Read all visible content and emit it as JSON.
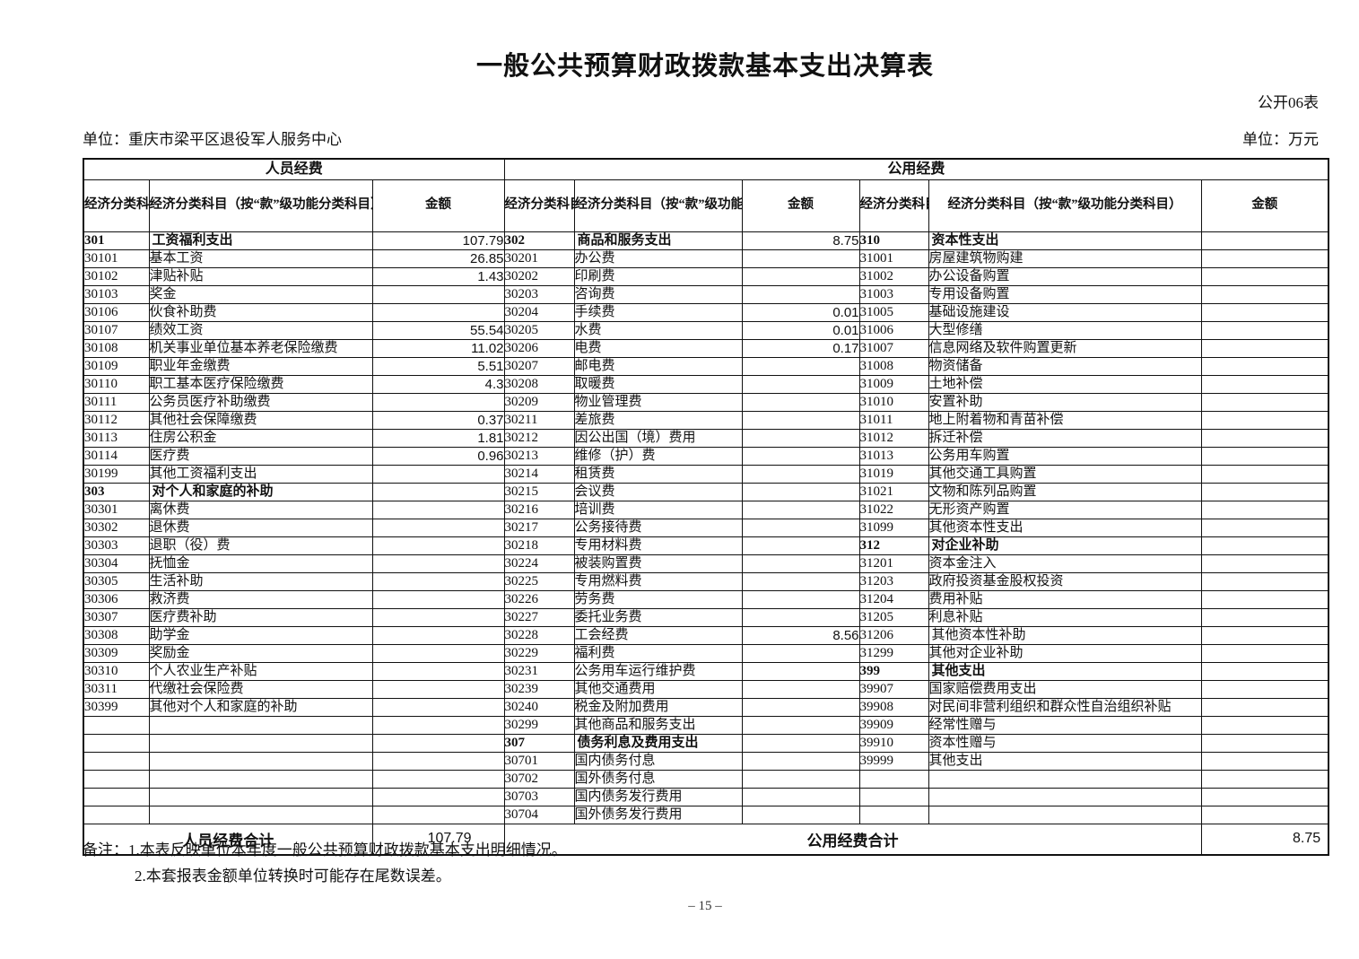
{
  "title": "一般公共预算财政拨款基本支出决算表",
  "form_label": "公开06表",
  "unit_left": "单位：重庆市梁平区退役军人服务中心",
  "unit_right": "单位：万元",
  "table": {
    "groups": [
      {
        "label": "人员经费"
      },
      {
        "label": "公用经费"
      }
    ],
    "columns": {
      "code": "经济分类科目编码",
      "subject": "经济分类科目（按“款”级功能分类科目）",
      "amount": "金额"
    },
    "row_count": 33,
    "sections": [
      {
        "name": "personnel",
        "rows": [
          [
            "301",
            "工资福利支出",
            "107.79",
            "c"
          ],
          [
            "30101",
            "基本工资",
            "26.85",
            "d"
          ],
          [
            "30102",
            "津贴补贴",
            "1.43",
            "d"
          ],
          [
            "30103",
            "奖金",
            "",
            "d"
          ],
          [
            "30106",
            "伙食补助费",
            "",
            "d"
          ],
          [
            "30107",
            "绩效工资",
            "55.54",
            "d"
          ],
          [
            "30108",
            "机关事业单位基本养老保险缴费",
            "11.02",
            "d"
          ],
          [
            "30109",
            "职业年金缴费",
            "5.51",
            "d"
          ],
          [
            "30110",
            "职工基本医疗保险缴费",
            "4.3",
            "d"
          ],
          [
            "30111",
            "公务员医疗补助缴费",
            "",
            "d"
          ],
          [
            "30112",
            "其他社会保障缴费",
            "0.37",
            "d"
          ],
          [
            "30113",
            "住房公积金",
            "1.81",
            "d"
          ],
          [
            "30114",
            "医疗费",
            "0.96",
            "d"
          ],
          [
            "30199",
            "其他工资福利支出",
            "",
            "d"
          ],
          [
            "303",
            "对个人和家庭的补助",
            "",
            "c"
          ],
          [
            "30301",
            "离休费",
            "",
            "d"
          ],
          [
            "30302",
            "退休费",
            "",
            "d"
          ],
          [
            "30303",
            "退职（役）费",
            "",
            "d"
          ],
          [
            "30304",
            "抚恤金",
            "",
            "d"
          ],
          [
            "30305",
            "生活补助",
            "",
            "d"
          ],
          [
            "30306",
            "救济费",
            "",
            "d"
          ],
          [
            "30307",
            "医疗费补助",
            "",
            "d"
          ],
          [
            "30308",
            "助学金",
            "",
            "d"
          ],
          [
            "30309",
            "奖励金",
            "",
            "d"
          ],
          [
            "30310",
            "个人农业生产补贴",
            "",
            "d"
          ],
          [
            "30311",
            "代缴社会保险费",
            "",
            "d"
          ],
          [
            "30399",
            "其他对个人和家庭的补助",
            "",
            "d"
          ]
        ]
      },
      {
        "name": "public-1",
        "rows": [
          [
            "302",
            "商品和服务支出",
            "8.75",
            "c"
          ],
          [
            "30201",
            "办公费",
            "",
            "d"
          ],
          [
            "30202",
            "印刷费",
            "",
            "d"
          ],
          [
            "30203",
            "咨询费",
            "",
            "d"
          ],
          [
            "30204",
            "手续费",
            "0.01",
            "d"
          ],
          [
            "30205",
            "水费",
            "0.01",
            "d"
          ],
          [
            "30206",
            "电费",
            "0.17",
            "d"
          ],
          [
            "30207",
            "邮电费",
            "",
            "d"
          ],
          [
            "30208",
            "取暖费",
            "",
            "d"
          ],
          [
            "30209",
            "物业管理费",
            "",
            "d"
          ],
          [
            "30211",
            "差旅费",
            "",
            "d"
          ],
          [
            "30212",
            "因公出国（境）费用",
            "",
            "d"
          ],
          [
            "30213",
            "维修（护）费",
            "",
            "d"
          ],
          [
            "30214",
            "租赁费",
            "",
            "d"
          ],
          [
            "30215",
            "会议费",
            "",
            "d"
          ],
          [
            "30216",
            "培训费",
            "",
            "d"
          ],
          [
            "30217",
            "公务接待费",
            "",
            "d"
          ],
          [
            "30218",
            "专用材料费",
            "",
            "d"
          ],
          [
            "30224",
            "被装购置费",
            "",
            "d"
          ],
          [
            "30225",
            "专用燃料费",
            "",
            "d"
          ],
          [
            "30226",
            "劳务费",
            "",
            "d"
          ],
          [
            "30227",
            "委托业务费",
            "",
            "d"
          ],
          [
            "30228",
            "工会经费",
            "8.56",
            "d"
          ],
          [
            "30229",
            "福利费",
            "",
            "d"
          ],
          [
            "30231",
            "公务用车运行维护费",
            "",
            "d"
          ],
          [
            "30239",
            "其他交通费用",
            "",
            "d"
          ],
          [
            "30240",
            "税金及附加费用",
            "",
            "d"
          ],
          [
            "30299",
            "其他商品和服务支出",
            "",
            "d"
          ],
          [
            "307",
            "债务利息及费用支出",
            "",
            "c"
          ],
          [
            "30701",
            "国内债务付息",
            "",
            "d"
          ],
          [
            "30702",
            "国外债务付息",
            "",
            "d"
          ],
          [
            "30703",
            "国内债务发行费用",
            "",
            "d"
          ],
          [
            "30704",
            "国外债务发行费用",
            "",
            "d"
          ]
        ]
      },
      {
        "name": "public-2",
        "rows": [
          [
            "310",
            "资本性支出",
            "",
            "c"
          ],
          [
            "31001",
            "房屋建筑物购建",
            "",
            "d"
          ],
          [
            "31002",
            "办公设备购置",
            "",
            "d"
          ],
          [
            "31003",
            "专用设备购置",
            "",
            "d"
          ],
          [
            "31005",
            "基础设施建设",
            "",
            "d"
          ],
          [
            "31006",
            "大型修缮",
            "",
            "d"
          ],
          [
            "31007",
            "信息网络及软件购置更新",
            "",
            "d"
          ],
          [
            "31008",
            "物资储备",
            "",
            "d"
          ],
          [
            "31009",
            "土地补偿",
            "",
            "d"
          ],
          [
            "31010",
            "安置补助",
            "",
            "d"
          ],
          [
            "31011",
            "地上附着物和青苗补偿",
            "",
            "d"
          ],
          [
            "31012",
            "拆迁补偿",
            "",
            "d"
          ],
          [
            "31013",
            "公务用车购置",
            "",
            "d"
          ],
          [
            "31019",
            "其他交通工具购置",
            "",
            "d"
          ],
          [
            "31021",
            "文物和陈列品购置",
            "",
            "d"
          ],
          [
            "31022",
            "无形资产购置",
            "",
            "d"
          ],
          [
            "31099",
            "其他资本性支出",
            "",
            "d"
          ],
          [
            "312",
            "对企业补助",
            "",
            "c"
          ],
          [
            "31201",
            "资本金注入",
            "",
            "d"
          ],
          [
            "31203",
            "政府投资基金股权投资",
            "",
            "d"
          ],
          [
            "31204",
            "费用补贴",
            "",
            "d"
          ],
          [
            "31205",
            "利息补贴",
            "",
            "d"
          ],
          [
            "31206",
            "其他资本性补助",
            "",
            "f"
          ],
          [
            "31299",
            "其他对企业补助",
            "",
            "d"
          ],
          [
            "399",
            "其他支出",
            "",
            "c"
          ],
          [
            "39907",
            "国家赔偿费用支出",
            "",
            "d"
          ],
          [
            "39908",
            "对民间非营利组织和群众性自治组织补贴",
            "",
            "d"
          ],
          [
            "39909",
            "经常性赠与",
            "",
            "d"
          ],
          [
            "39910",
            "资本性赠与",
            "",
            "d"
          ],
          [
            "39999",
            "其他支出",
            "",
            "d"
          ]
        ]
      }
    ],
    "footer": {
      "personnel_label": "人员经费合计",
      "personnel_amount": "107.79",
      "public_label": "公用经费合计",
      "public_amount": "8.75"
    }
  },
  "notes": {
    "label": "备注：",
    "lines": [
      "1.本表反映单位本年度一般公共预算财政拨款基本支出明细情况。",
      "2.本套报表金额单位转换时可能存在尾数误差。"
    ]
  },
  "page_number": "– 15 –",
  "colors": {
    "text": "#111111",
    "border": "#111111",
    "background": "#ffffff"
  }
}
